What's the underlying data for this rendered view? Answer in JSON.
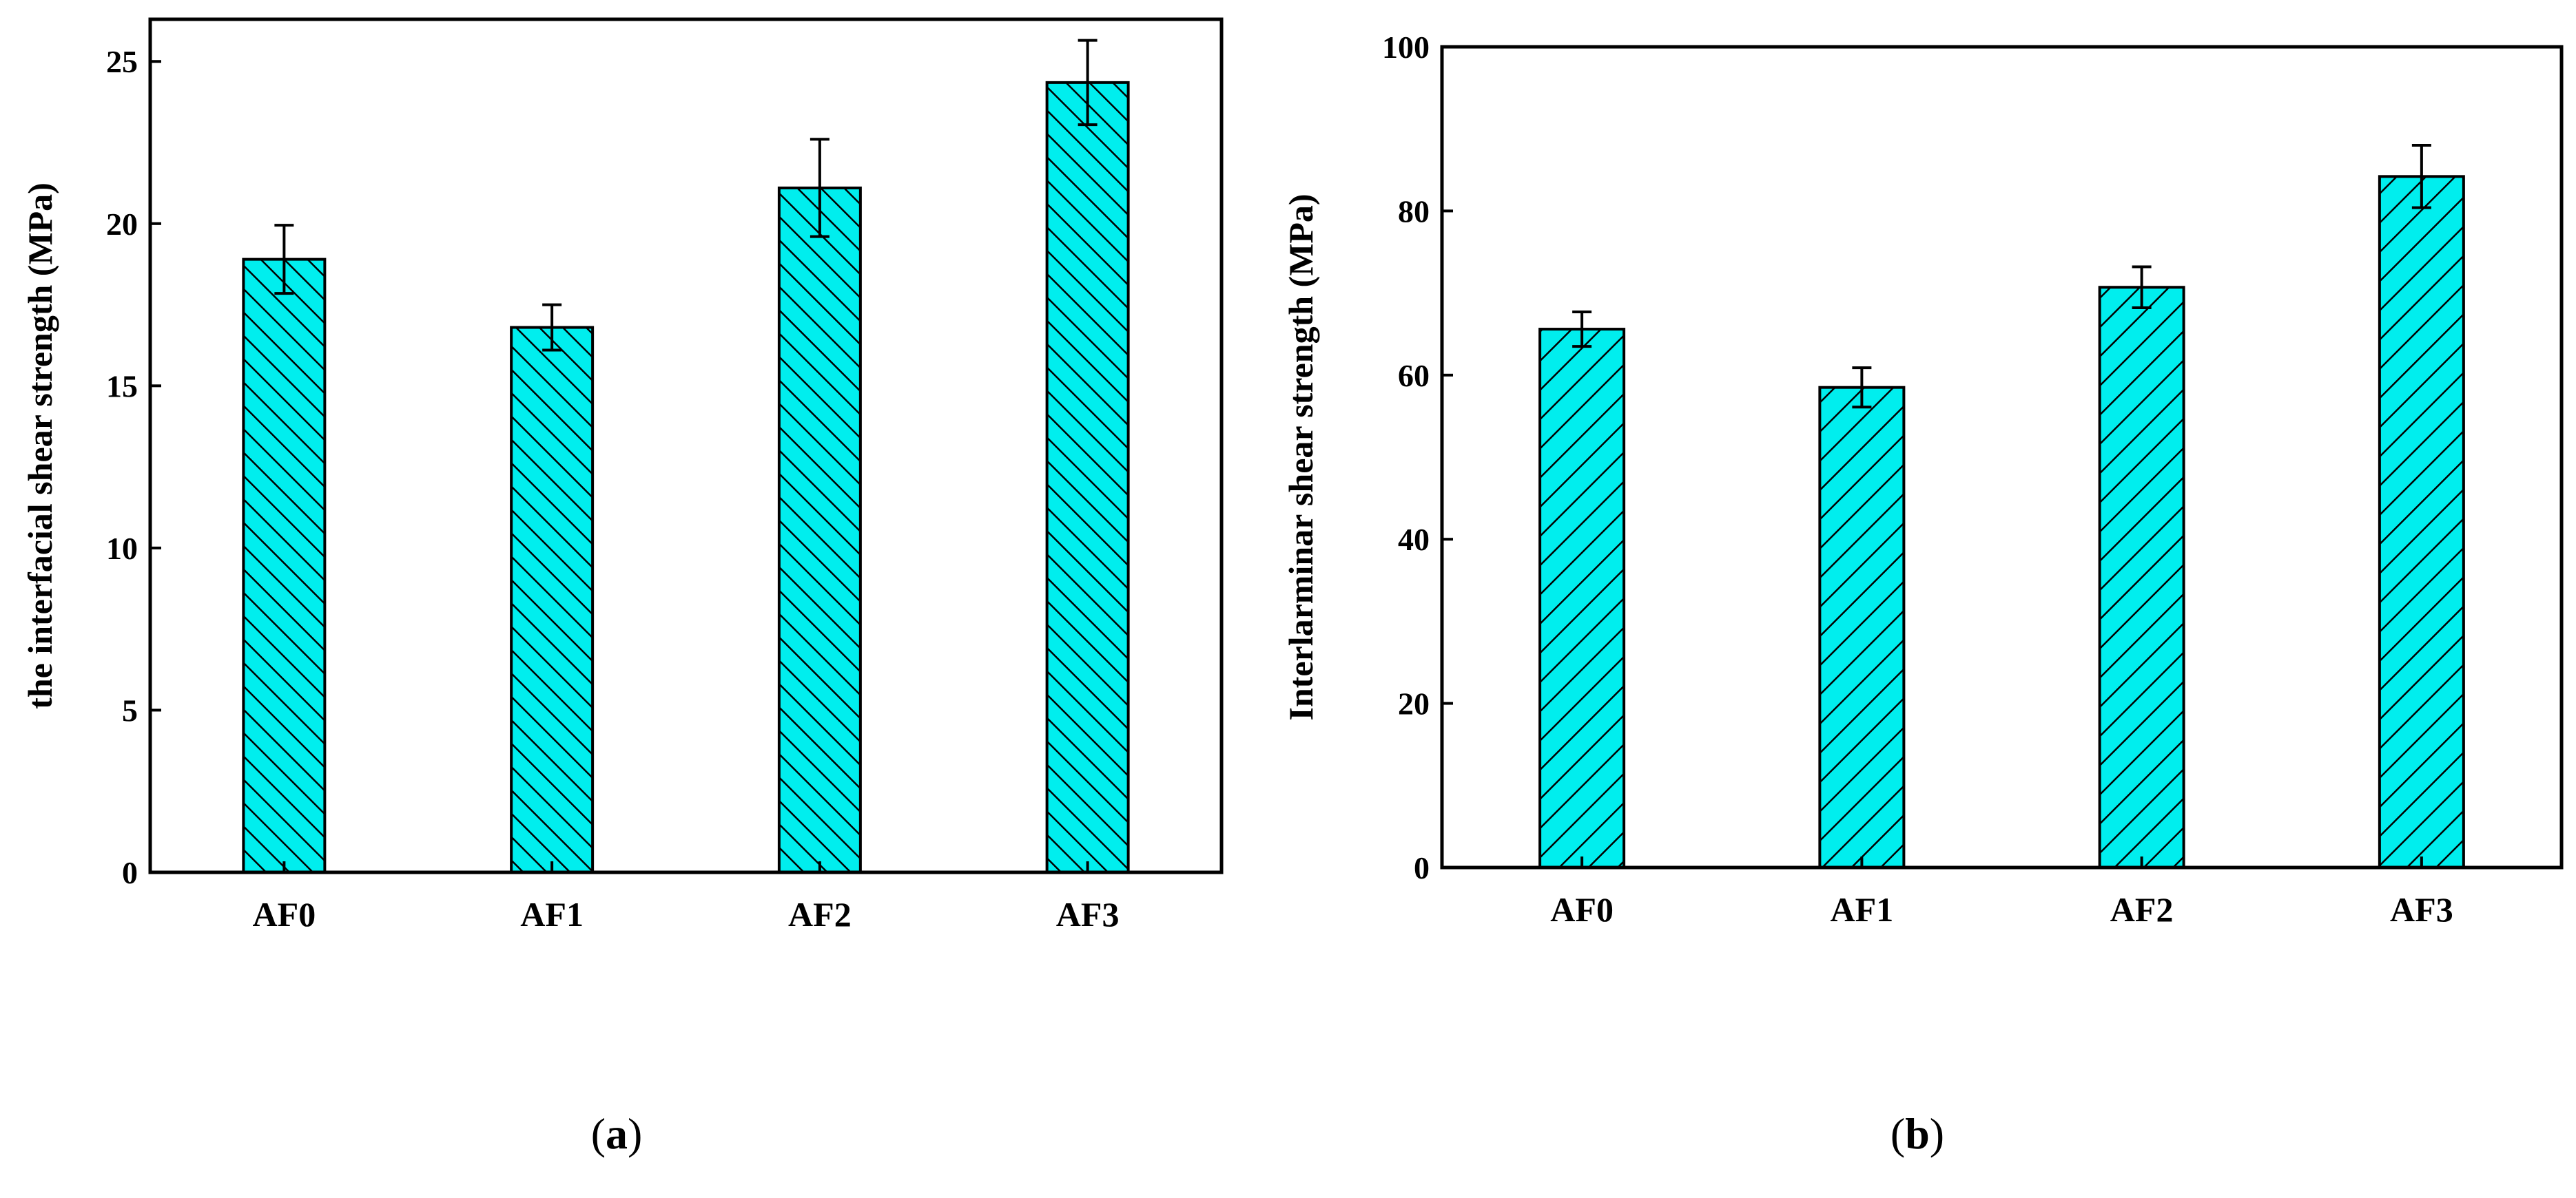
{
  "chart_data": [
    {
      "type": "bar",
      "panel_label": {
        "open": "(",
        "letter": "a",
        "close": ")"
      },
      "ylabel": "the interfacial shear strength (MPa)",
      "xlabel": "",
      "categories": [
        "AF0",
        "AF1",
        "AF2",
        "AF3"
      ],
      "values": [
        18.9,
        16.8,
        21.1,
        24.35
      ],
      "errors": [
        1.05,
        0.7,
        1.5,
        1.3
      ],
      "ylim": [
        0,
        26.3
      ],
      "yticks": [
        0,
        5,
        10,
        15,
        20,
        25
      ],
      "hatch": "backslash",
      "bar_color": "#00EEEE",
      "grid": false
    },
    {
      "type": "bar",
      "panel_label": {
        "open": "(",
        "letter": "b",
        "close": ")"
      },
      "ylabel": "Interlarminar shear strength (MPa)",
      "xlabel": "",
      "categories": [
        "AF0",
        "AF1",
        "AF2",
        "AF3"
      ],
      "values": [
        65.6,
        58.5,
        70.7,
        84.2
      ],
      "errors": [
        2.1,
        2.4,
        2.5,
        3.8
      ],
      "ylim": [
        0,
        100
      ],
      "yticks": [
        0,
        20,
        40,
        60,
        80,
        100
      ],
      "hatch": "slash",
      "bar_color": "#00EEEE",
      "grid": false
    }
  ]
}
